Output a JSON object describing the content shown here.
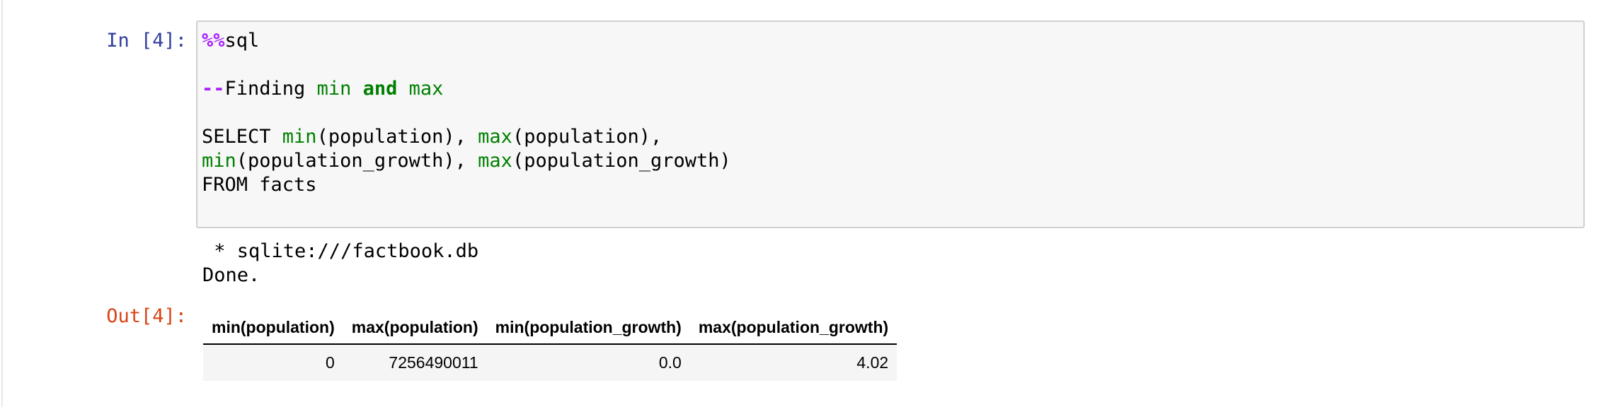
{
  "cell": {
    "input_prompt": "In [4]:",
    "code": [
      [
        {
          "text": "%%",
          "color": "#aa22ff",
          "bold": true
        },
        {
          "text": "sql",
          "color": "#000000",
          "bold": false
        }
      ],
      [],
      [
        {
          "text": "--",
          "color": "#aa22ff",
          "bold": true
        },
        {
          "text": "Finding ",
          "color": "#000000",
          "bold": false
        },
        {
          "text": "min",
          "color": "#008000",
          "bold": false
        },
        {
          "text": " ",
          "color": "#000000",
          "bold": false
        },
        {
          "text": "and",
          "color": "#008000",
          "bold": true
        },
        {
          "text": " ",
          "color": "#000000",
          "bold": false
        },
        {
          "text": "max",
          "color": "#008000",
          "bold": false
        }
      ],
      [],
      [
        {
          "text": "SELECT ",
          "color": "#000000",
          "bold": false
        },
        {
          "text": "min",
          "color": "#008000",
          "bold": false
        },
        {
          "text": "(population), ",
          "color": "#000000",
          "bold": false
        },
        {
          "text": "max",
          "color": "#008000",
          "bold": false
        },
        {
          "text": "(population),",
          "color": "#000000",
          "bold": false
        }
      ],
      [
        {
          "text": "min",
          "color": "#008000",
          "bold": false
        },
        {
          "text": "(population_growth), ",
          "color": "#000000",
          "bold": false
        },
        {
          "text": "max",
          "color": "#008000",
          "bold": false
        },
        {
          "text": "(population_growth)",
          "color": "#000000",
          "bold": false
        }
      ],
      [
        {
          "text": "FROM facts",
          "color": "#000000",
          "bold": false
        }
      ]
    ],
    "stream": [
      " * sqlite:///factbook.db",
      "Done."
    ],
    "output_prompt": "Out[4]:",
    "table": {
      "columns": [
        "min(population)",
        "max(population)",
        "min(population_growth)",
        "max(population_growth)"
      ],
      "rows": [
        [
          "0",
          "7256490011",
          "0.0",
          "4.02"
        ]
      ]
    }
  }
}
